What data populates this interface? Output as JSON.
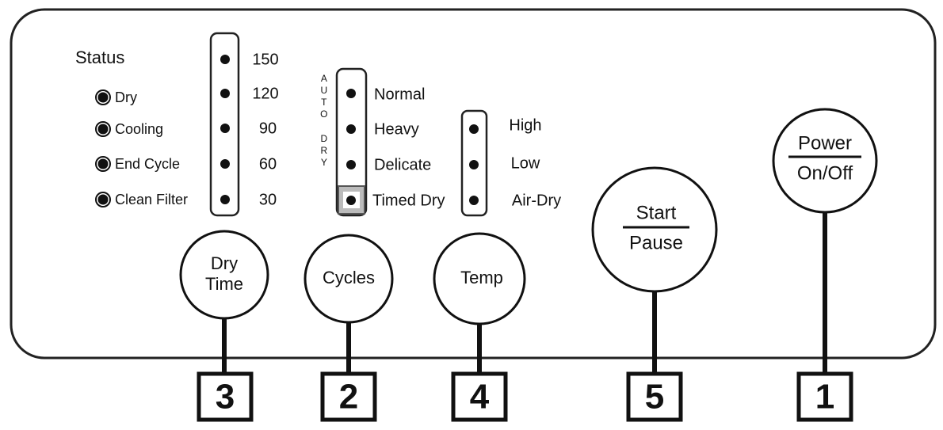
{
  "status": {
    "title": "Status",
    "items": [
      "Dry",
      "Cooling",
      "End Cycle",
      "Clean Filter"
    ]
  },
  "dry_time": {
    "options": [
      "150",
      "120",
      "90",
      "60",
      "30"
    ]
  },
  "cycles": {
    "group_label": [
      "AUTO",
      "DRY"
    ],
    "options": [
      "Normal",
      "Heavy",
      "Delicate",
      "Timed Dry"
    ]
  },
  "temp": {
    "options": [
      "High",
      "Low",
      "Air-Dry"
    ]
  },
  "buttons": [
    {
      "label": [
        "Dry",
        "Time"
      ],
      "callout": "3"
    },
    {
      "label": [
        "Cycles"
      ],
      "callout": "2"
    },
    {
      "label": [
        "Temp"
      ],
      "callout": "4"
    },
    {
      "label": [
        "Start",
        "Pause"
      ],
      "callout": "5"
    },
    {
      "label": [
        "Power",
        "On/Off"
      ],
      "callout": "1"
    }
  ]
}
